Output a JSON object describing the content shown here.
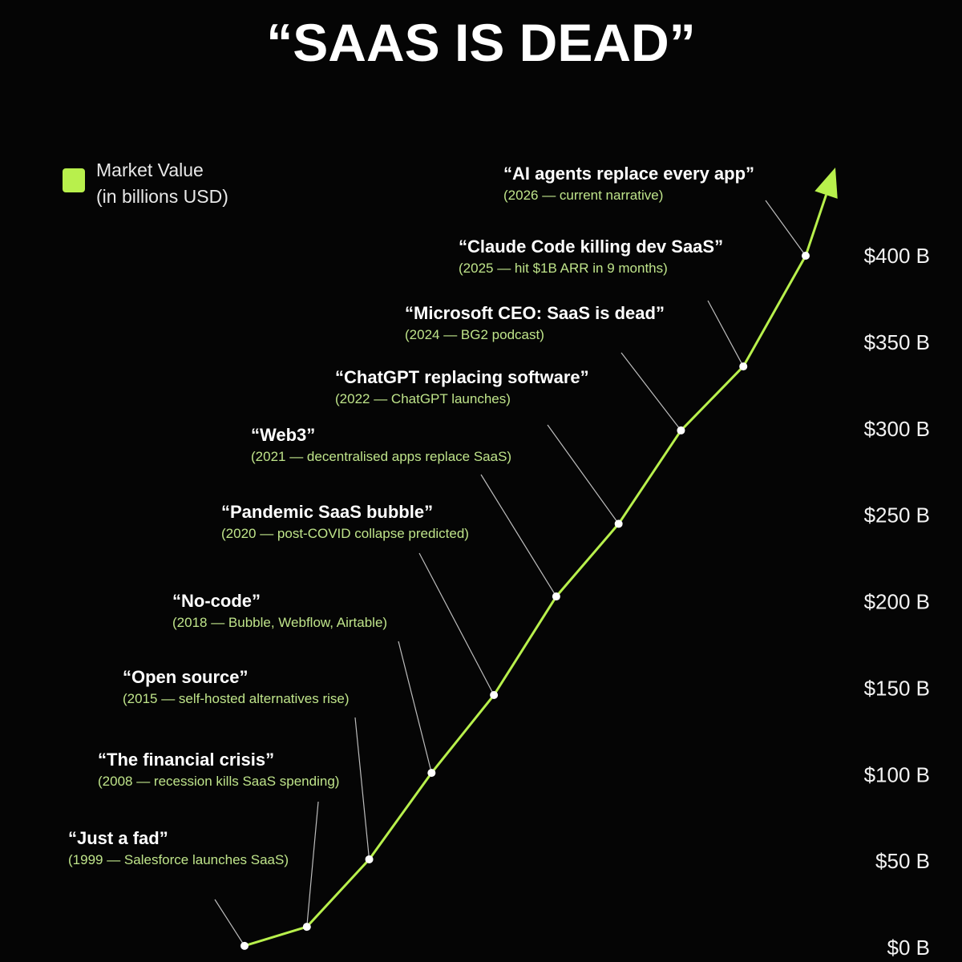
{
  "chart_data": {
    "type": "line",
    "title": "“SAAS IS DEAD”",
    "categories": [
      "“Just a fad”",
      "“The financial crisis”",
      "“Open source”",
      "“No-code”",
      "“Pandemic SaaS bubble”",
      "“Web3”",
      "“ChatGPT replacing software”",
      "“Microsoft CEO: SaaS is dead”",
      "“Claude Code killing dev SaaS”",
      "“AI agents replace every app”"
    ],
    "notes": [
      "(1999 — Salesforce launches SaaS)",
      "(2008 — recession kills SaaS spending)",
      "(2015 — self-hosted alternatives rise)",
      "(2018 — Bubble, Webflow, Airtable)",
      "(2020 — post-COVID collapse predicted)",
      "(2021 — decentralised apps replace SaaS)",
      "(2022 — ChatGPT launches)",
      "(2024 — BG2 podcast)",
      "(2025 — hit $1B ARR in 9 months)",
      "(2026 — current narrative)"
    ],
    "series": [
      {
        "name": "Market Value",
        "unit": "(in billions USD)",
        "color": "#b8f04c",
        "values": [
          1,
          12,
          51,
          101,
          146,
          203,
          245,
          299,
          336,
          400
        ]
      }
    ],
    "ylim": [
      0,
      400
    ],
    "yticks": [
      {
        "value": 0,
        "label": "$0 B"
      },
      {
        "value": 50,
        "label": "$50 B"
      },
      {
        "value": 100,
        "label": "$100 B"
      },
      {
        "value": 150,
        "label": "$150 B"
      },
      {
        "value": 200,
        "label": "$200 B"
      },
      {
        "value": 250,
        "label": "$250 B"
      },
      {
        "value": 300,
        "label": "$300 B"
      },
      {
        "value": 350,
        "label": "$350 B"
      },
      {
        "value": 400,
        "label": "$400 B"
      }
    ]
  }
}
